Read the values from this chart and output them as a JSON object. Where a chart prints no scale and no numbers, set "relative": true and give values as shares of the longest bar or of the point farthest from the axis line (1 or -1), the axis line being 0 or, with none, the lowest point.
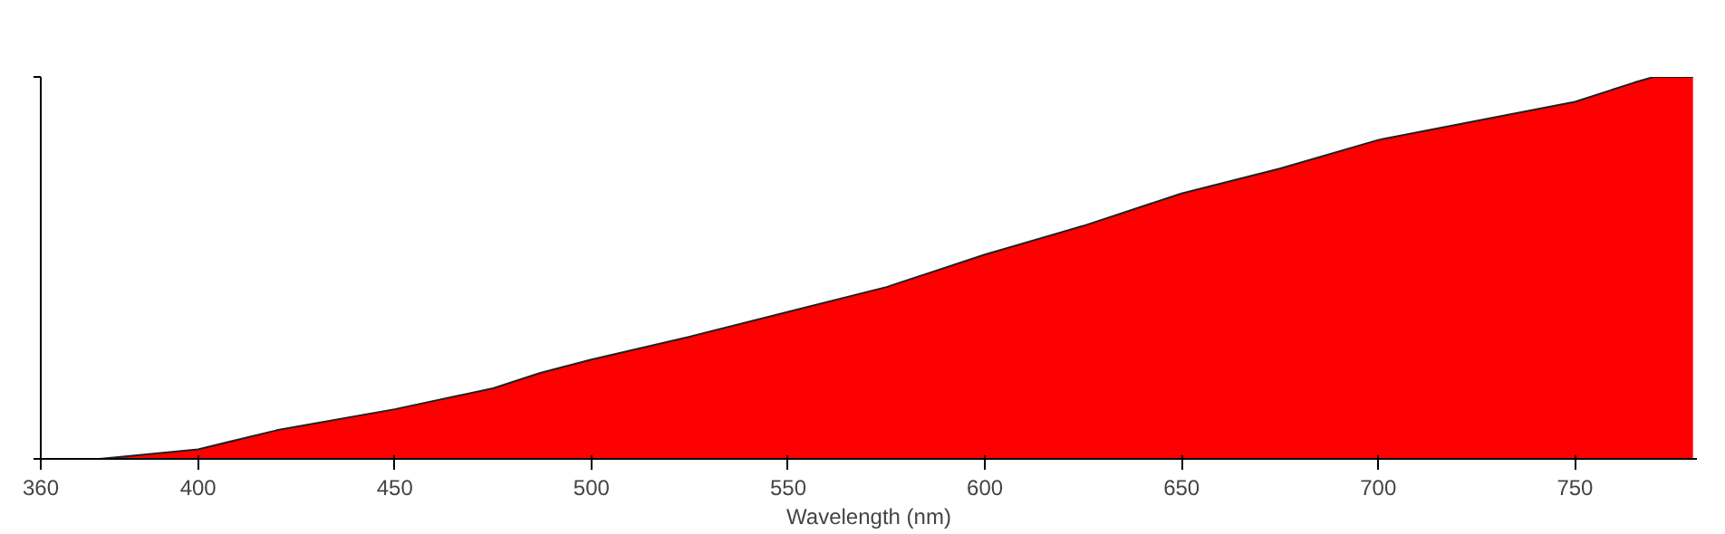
{
  "chart_data": {
    "type": "area",
    "relative": true,
    "xlabel": "Wavelength (nm)",
    "xlim": [
      360,
      781
    ],
    "xticks": [
      360,
      400,
      450,
      500,
      550,
      600,
      650,
      700,
      750
    ],
    "grid": false,
    "color": "#ff0000",
    "x": [
      375,
      400,
      420,
      450,
      475,
      487,
      500,
      525,
      550,
      575,
      600,
      625,
      650,
      675,
      700,
      725,
      750,
      765,
      770,
      780
    ],
    "values": [
      0,
      0.025,
      0.075,
      0.13,
      0.185,
      0.225,
      0.26,
      0.32,
      0.385,
      0.45,
      0.535,
      0.61,
      0.695,
      0.76,
      0.835,
      0.885,
      0.935,
      0.985,
      1,
      1
    ]
  }
}
